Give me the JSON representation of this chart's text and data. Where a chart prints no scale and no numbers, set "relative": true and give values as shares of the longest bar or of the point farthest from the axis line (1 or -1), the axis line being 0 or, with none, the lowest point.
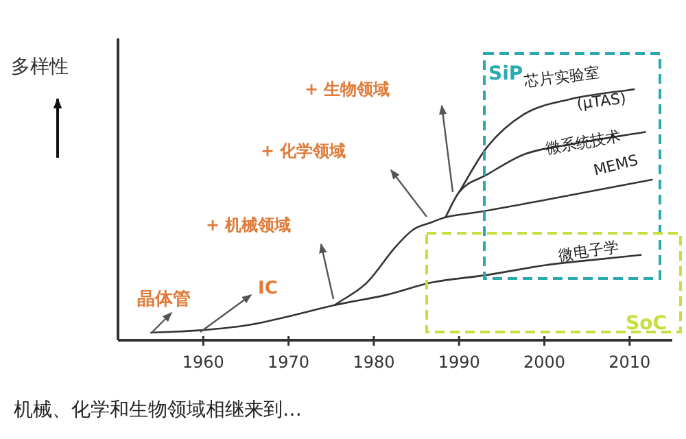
{
  "chart_data": {
    "type": "line",
    "relative": true,
    "ylabel": "多样性",
    "xlim": [
      1950,
      2015
    ],
    "xticks": [
      1960,
      1970,
      1980,
      1990,
      2000,
      2010
    ],
    "series": [
      {
        "name": "微电子学",
        "color": "#333333",
        "x": [
          1953.8,
          1959.8,
          1965.2,
          1970.6,
          1975.4,
          1981.4,
          1986.8,
          1993.3,
          2000.3,
          2005.7,
          2011.4
        ],
        "values": [
          0.03,
          0.04,
          0.06,
          0.1,
          0.14,
          0.18,
          0.23,
          0.26,
          0.3,
          0.32,
          0.34
        ]
      },
      {
        "name": "MEMS",
        "color": "#333333",
        "x": [
          1975.4,
          1979.2,
          1982.5,
          1984.6,
          1986.8,
          1988.4,
          1992.2,
          2000.3,
          2012.7
        ],
        "values": [
          0.14,
          0.23,
          0.37,
          0.44,
          0.47,
          0.49,
          0.51,
          0.56,
          0.64
        ]
      },
      {
        "name": "微系统技术",
        "color": "#333333",
        "x": [
          1988.4,
          1990.0,
          1993.3,
          1997.6,
          2003.0,
          2011.9
        ],
        "values": [
          0.49,
          0.59,
          0.66,
          0.74,
          0.78,
          0.83
        ]
      },
      {
        "name": "芯片实验室\n(μTAS)",
        "color": "#333333",
        "x": [
          1990.0,
          1993.3,
          1997.6,
          2003.0,
          2010.6
        ],
        "values": [
          0.59,
          0.77,
          0.9,
          0.96,
          1.0
        ]
      }
    ],
    "annotations": [
      "晶体管",
      "IC",
      "+ 机械领域",
      "+ 化学领域",
      "+ 生物领域",
      "SiP",
      "SoC",
      "机械、化学和生物领域相继来到…"
    ],
    "grid": false,
    "legend": false,
    "marker": "none",
    "line_style": "solid"
  }
}
